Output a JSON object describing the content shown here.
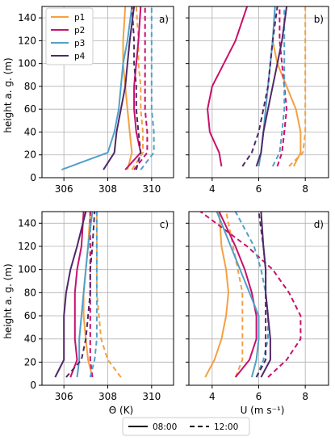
{
  "colors": {
    "p1": "#f5a040",
    "p2": "#c8106c",
    "p3": "#50a0c8",
    "p4": "#502868"
  },
  "legend": {
    "series": [
      "p1",
      "p2",
      "p3",
      "p4"
    ],
    "times": [
      {
        "label": "08:00",
        "style": "solid"
      },
      {
        "label": "12:00",
        "style": "dashed"
      }
    ]
  },
  "axis_labels": {
    "y": "height a. g. (m)",
    "x_theta": "Θ (K)",
    "x_u": "U (m s⁻¹)"
  },
  "chart_data": [
    {
      "type": "line",
      "panel": "a)",
      "xlabel": "",
      "ylabel": "height a. g. (m)",
      "xlim": [
        305,
        311
      ],
      "ylim": [
        0,
        150
      ],
      "xticks": [
        306,
        308,
        310
      ],
      "yticks": [
        0,
        20,
        40,
        60,
        80,
        100,
        120,
        140
      ],
      "grid": true,
      "legend": "top-left",
      "series": [
        {
          "name": "p1",
          "time": "08:00",
          "x": [
            308.9,
            309.1,
            309.0,
            308.9,
            308.8,
            308.7,
            308.7,
            308.8
          ],
          "y": [
            7,
            22,
            40,
            60,
            80,
            100,
            120,
            150
          ]
        },
        {
          "name": "p1",
          "time": "12:00",
          "x": [
            309.1,
            309.6,
            309.6,
            309.5,
            309.5,
            309.4,
            309.4,
            309.3
          ],
          "y": [
            7,
            22,
            40,
            60,
            80,
            100,
            120,
            150
          ]
        },
        {
          "name": "p2",
          "time": "08:00",
          "x": [
            308.8,
            309.5,
            309.3,
            309.2,
            309.2,
            309.3,
            309.4,
            309.5
          ],
          "y": [
            7,
            22,
            40,
            60,
            80,
            100,
            120,
            150
          ]
        },
        {
          "name": "p2",
          "time": "12:00",
          "x": [
            309.2,
            309.8,
            309.8,
            309.7,
            309.7,
            309.7,
            309.7,
            309.7
          ],
          "y": [
            7,
            22,
            40,
            60,
            80,
            100,
            120,
            150
          ]
        },
        {
          "name": "p3",
          "time": "08:00",
          "x": [
            305.9,
            308.0,
            308.3,
            308.5,
            308.6,
            308.7,
            308.9,
            309.1
          ],
          "y": [
            7,
            22,
            40,
            60,
            80,
            100,
            120,
            150
          ]
        },
        {
          "name": "p3",
          "time": "12:00",
          "x": [
            309.5,
            310.1,
            310.1,
            310.0,
            310.0,
            310.0,
            310.0,
            310.0
          ],
          "y": [
            7,
            22,
            40,
            60,
            80,
            100,
            120,
            150
          ]
        },
        {
          "name": "p4",
          "time": "08:00",
          "x": [
            307.8,
            308.3,
            308.4,
            308.6,
            308.8,
            308.9,
            309.0,
            309.2
          ],
          "y": [
            7,
            22,
            40,
            60,
            80,
            100,
            120,
            150
          ]
        },
        {
          "name": "p4",
          "time": "12:00",
          "x": [
            309.3,
            309.5,
            309.4,
            309.3,
            309.3,
            309.2,
            309.2,
            309.1
          ],
          "y": [
            7,
            22,
            40,
            60,
            80,
            100,
            120,
            150
          ]
        }
      ]
    },
    {
      "type": "line",
      "panel": "b)",
      "xlabel": "",
      "ylabel": "",
      "xlim": [
        3,
        9
      ],
      "ylim": [
        0,
        150
      ],
      "xticks": [
        4,
        6,
        8
      ],
      "yticks": [
        0,
        20,
        40,
        60,
        80,
        100,
        120,
        140
      ],
      "grid": true,
      "series": [
        {
          "name": "p1",
          "time": "08:00",
          "x": [
            7.5,
            7.8,
            7.8,
            7.6,
            7.2,
            6.8,
            6.6,
            6.7
          ],
          "y": [
            10,
            22,
            40,
            60,
            80,
            100,
            120,
            150
          ]
        },
        {
          "name": "p1",
          "time": "12:00",
          "x": [
            7.3,
            7.9,
            8.0,
            8.0,
            8.0,
            8.0,
            8.0,
            8.0
          ],
          "y": [
            10,
            22,
            40,
            60,
            80,
            100,
            120,
            150
          ]
        },
        {
          "name": "p2",
          "time": "08:00",
          "x": [
            4.4,
            4.3,
            3.9,
            3.8,
            4.0,
            4.5,
            5.0,
            5.5
          ],
          "y": [
            10,
            22,
            40,
            60,
            80,
            100,
            120,
            150
          ]
        },
        {
          "name": "p2",
          "time": "12:00",
          "x": [
            6.8,
            7.0,
            7.1,
            7.2,
            7.1,
            7.0,
            6.9,
            6.9
          ],
          "y": [
            10,
            22,
            40,
            60,
            80,
            100,
            120,
            150
          ]
        },
        {
          "name": "p3",
          "time": "08:00",
          "x": [
            6.0,
            6.1,
            6.2,
            6.3,
            6.4,
            6.5,
            6.6,
            6.7
          ],
          "y": [
            10,
            22,
            40,
            60,
            80,
            100,
            120,
            150
          ]
        },
        {
          "name": "p3",
          "time": "12:00",
          "x": [
            6.6,
            6.9,
            7.0,
            7.1,
            7.1,
            7.1,
            7.1,
            7.1
          ],
          "y": [
            10,
            22,
            40,
            60,
            80,
            100,
            120,
            150
          ]
        },
        {
          "name": "p4",
          "time": "08:00",
          "x": [
            5.9,
            6.1,
            6.2,
            6.4,
            6.6,
            6.8,
            7.0,
            7.2
          ],
          "y": [
            10,
            22,
            40,
            60,
            80,
            100,
            120,
            150
          ]
        },
        {
          "name": "p4",
          "time": "12:00",
          "x": [
            5.3,
            5.7,
            6.0,
            6.2,
            6.4,
            6.5,
            6.6,
            6.8
          ],
          "y": [
            10,
            22,
            40,
            60,
            80,
            100,
            120,
            150
          ]
        }
      ]
    },
    {
      "type": "line",
      "panel": "c)",
      "xlabel": "Θ (K)",
      "ylabel": "height a. g. (m)",
      "xlim": [
        305,
        311
      ],
      "ylim": [
        0,
        150
      ],
      "xticks": [
        306,
        308,
        310
      ],
      "yticks": [
        0,
        20,
        40,
        60,
        80,
        100,
        120,
        140
      ],
      "grid": true,
      "series": [
        {
          "name": "p1",
          "time": "08:00",
          "x": [
            307.3,
            307.1,
            307.0,
            306.9,
            306.9,
            307.0,
            307.1,
            307.2
          ],
          "y": [
            7,
            22,
            40,
            60,
            80,
            100,
            120,
            150
          ]
        },
        {
          "name": "p1",
          "time": "12:00",
          "x": [
            308.6,
            308.0,
            307.7,
            307.6,
            307.5,
            307.5,
            307.5,
            307.5
          ],
          "y": [
            7,
            22,
            40,
            60,
            80,
            100,
            120,
            150
          ]
        },
        {
          "name": "p2",
          "time": "08:00",
          "x": [
            306.3,
            306.6,
            306.5,
            306.5,
            306.5,
            306.6,
            306.8,
            306.9
          ],
          "y": [
            7,
            22,
            40,
            60,
            80,
            100,
            120,
            150
          ]
        },
        {
          "name": "p2",
          "time": "12:00",
          "x": [
            307.3,
            307.2,
            307.2,
            307.2,
            307.2,
            307.2,
            307.2,
            307.2
          ],
          "y": [
            7,
            22,
            40,
            60,
            80,
            100,
            120,
            150
          ]
        },
        {
          "name": "p3",
          "time": "08:00",
          "x": [
            306.6,
            306.7,
            306.7,
            306.8,
            306.9,
            307.0,
            307.1,
            307.3
          ],
          "y": [
            7,
            22,
            40,
            60,
            80,
            100,
            120,
            150
          ]
        },
        {
          "name": "p3",
          "time": "12:00",
          "x": [
            307.2,
            307.4,
            307.5,
            307.5,
            307.5,
            307.5,
            307.5,
            307.5
          ],
          "y": [
            7,
            22,
            40,
            60,
            80,
            100,
            120,
            150
          ]
        },
        {
          "name": "p4",
          "time": "08:00",
          "x": [
            305.6,
            306.0,
            306.0,
            306.0,
            306.1,
            306.3,
            306.6,
            307.0
          ],
          "y": [
            7,
            22,
            40,
            60,
            80,
            100,
            120,
            150
          ]
        },
        {
          "name": "p4",
          "time": "12:00",
          "x": [
            306.1,
            306.8,
            307.0,
            307.1,
            307.2,
            307.2,
            307.3,
            307.4
          ],
          "y": [
            7,
            22,
            40,
            60,
            80,
            100,
            120,
            150
          ]
        }
      ]
    },
    {
      "type": "line",
      "panel": "d)",
      "xlabel": "U (m s⁻¹)",
      "ylabel": "",
      "xlim": [
        3,
        9
      ],
      "ylim": [
        0,
        150
      ],
      "xticks": [
        4,
        6,
        8
      ],
      "yticks": [
        0,
        20,
        40,
        60,
        80,
        100,
        120,
        140
      ],
      "grid": true,
      "series": [
        {
          "name": "p1",
          "time": "08:00",
          "x": [
            3.7,
            4.1,
            4.4,
            4.6,
            4.7,
            4.6,
            4.4,
            4.3
          ],
          "y": [
            7,
            22,
            40,
            60,
            80,
            100,
            120,
            150
          ]
        },
        {
          "name": "p1",
          "time": "12:00",
          "x": [
            5.0,
            5.3,
            5.3,
            5.3,
            5.3,
            5.1,
            4.9,
            4.6
          ],
          "y": [
            7,
            22,
            40,
            60,
            80,
            100,
            120,
            150
          ]
        },
        {
          "name": "p2",
          "time": "08:00",
          "x": [
            5.0,
            5.6,
            5.9,
            5.9,
            5.7,
            5.4,
            5.0,
            4.3
          ],
          "y": [
            7,
            22,
            40,
            60,
            80,
            100,
            120,
            150
          ]
        },
        {
          "name": "p2",
          "time": "12:00",
          "x": [
            6.4,
            7.2,
            7.8,
            7.8,
            7.3,
            6.6,
            5.5,
            3.5
          ],
          "y": [
            7,
            22,
            40,
            60,
            80,
            100,
            120,
            150
          ]
        },
        {
          "name": "p3",
          "time": "08:00",
          "x": [
            5.7,
            5.9,
            6.0,
            6.0,
            5.6,
            5.2,
            4.8,
            4.2
          ],
          "y": [
            7,
            22,
            40,
            60,
            80,
            100,
            120,
            150
          ]
        },
        {
          "name": "p3",
          "time": "12:00",
          "x": [
            5.9,
            6.2,
            6.4,
            6.4,
            6.3,
            6.1,
            5.8,
            5.0
          ],
          "y": [
            7,
            22,
            40,
            60,
            80,
            100,
            120,
            150
          ]
        },
        {
          "name": "p4",
          "time": "08:00",
          "x": [
            6.1,
            6.5,
            6.5,
            6.4,
            6.3,
            6.3,
            6.2,
            6.1
          ],
          "y": [
            7,
            22,
            40,
            60,
            80,
            100,
            120,
            150
          ]
        },
        {
          "name": "p4",
          "time": "12:00",
          "x": [
            5.9,
            6.3,
            6.3,
            6.3,
            6.3,
            6.3,
            6.2,
            6.0
          ],
          "y": [
            7,
            22,
            40,
            60,
            80,
            100,
            120,
            150
          ]
        }
      ]
    }
  ]
}
